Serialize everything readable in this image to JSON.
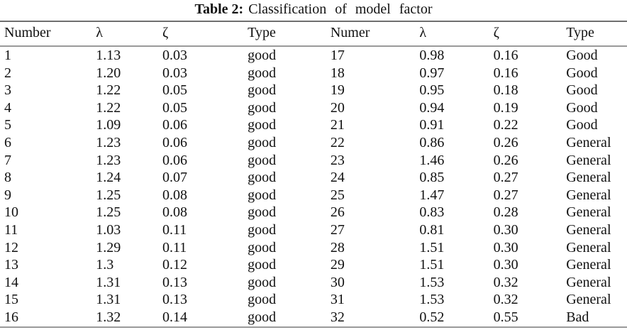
{
  "caption": {
    "label": "Table 2:",
    "text": "Classification of model factor"
  },
  "table": {
    "columns": [
      "Number",
      "λ",
      "ζ",
      "Type",
      "Numer",
      "λ",
      "ζ",
      "Type"
    ],
    "rows": [
      [
        "1",
        "1.13",
        "0.03",
        "good",
        "17",
        "0.98",
        "0.16",
        "Good"
      ],
      [
        "2",
        "1.20",
        "0.03",
        "good",
        "18",
        "0.97",
        "0.16",
        "Good"
      ],
      [
        "3",
        "1.22",
        "0.05",
        "good",
        "19",
        "0.95",
        "0.18",
        "Good"
      ],
      [
        "4",
        "1.22",
        "0.05",
        "good",
        "20",
        "0.94",
        "0.19",
        "Good"
      ],
      [
        "5",
        "1.09",
        "0.06",
        "good",
        "21",
        "0.91",
        "0.22",
        "Good"
      ],
      [
        "6",
        "1.23",
        "0.06",
        "good",
        "22",
        "0.86",
        "0.26",
        "General"
      ],
      [
        "7",
        "1.23",
        "0.06",
        "good",
        "23",
        "1.46",
        "0.26",
        "General"
      ],
      [
        "8",
        "1.24",
        "0.07",
        "good",
        "24",
        "0.85",
        "0.27",
        "General"
      ],
      [
        "9",
        "1.25",
        "0.08",
        "good",
        "25",
        "1.47",
        "0.27",
        "General"
      ],
      [
        "10",
        "1.25",
        "0.08",
        "good",
        "26",
        "0.83",
        "0.28",
        "General"
      ],
      [
        "11",
        "1.03",
        "0.11",
        "good",
        "27",
        "0.81",
        "0.30",
        "General"
      ],
      [
        "12",
        "1.29",
        "0.11",
        "good",
        "28",
        "1.51",
        "0.30",
        "General"
      ],
      [
        "13",
        "1.3",
        "0.12",
        "good",
        "29",
        "1.51",
        "0.30",
        "General"
      ],
      [
        "14",
        "1.31",
        "0.13",
        "good",
        "30",
        "1.53",
        "0.32",
        "General"
      ],
      [
        "15",
        "1.31",
        "0.13",
        "good",
        "31",
        "1.53",
        "0.32",
        "General"
      ],
      [
        "16",
        "1.32",
        "0.14",
        "good",
        "32",
        "0.52",
        "0.55",
        "Bad"
      ]
    ]
  }
}
